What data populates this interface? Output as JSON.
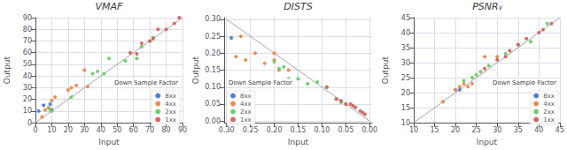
{
  "chart_data": [
    {
      "type": "scatter",
      "title": "VMAF",
      "x_label": "Input",
      "y_label": "Output",
      "xlim": [
        0,
        90
      ],
      "ylim": [
        0,
        90
      ],
      "xticks": [
        0,
        10,
        20,
        30,
        40,
        50,
        60,
        70,
        80,
        90
      ],
      "yticks": [
        0,
        10,
        20,
        30,
        40,
        50,
        60,
        70,
        80,
        90
      ],
      "grid": true,
      "legend": "lower right",
      "legend_title": "Down Sample Factor",
      "reference_line": {
        "x": [
          0,
          90
        ],
        "values": [
          0,
          90
        ],
        "color": "gray"
      },
      "series": [
        {
          "name": "8xx",
          "color": "#4878d0",
          "x": [
            2,
            5,
            9,
            10
          ],
          "values": [
            10,
            15,
            16,
            11
          ]
        },
        {
          "name": "4xx",
          "color": "#ee854a",
          "x": [
            4,
            6,
            8,
            10,
            12,
            20,
            22,
            25,
            30,
            32
          ],
          "values": [
            5,
            11,
            13,
            19,
            22,
            28,
            30,
            32,
            45,
            31
          ]
        },
        {
          "name": "2xx",
          "color": "#6acc65",
          "x": [
            9,
            10,
            22,
            35,
            38,
            42,
            45,
            55,
            62,
            65,
            70,
            72
          ],
          "values": [
            11,
            10,
            22,
            42,
            44,
            42,
            55,
            53,
            55,
            65,
            70,
            73
          ]
        },
        {
          "name": "1xx",
          "color": "#d65f5f",
          "x": [
            58,
            62,
            65,
            70,
            72,
            75,
            80,
            85,
            88
          ],
          "values": [
            60,
            59,
            68,
            70,
            72,
            80,
            80,
            85,
            90
          ]
        }
      ]
    },
    {
      "type": "scatter",
      "title": "DISTS",
      "x_label": "Input",
      "y_label": "Output",
      "xlim": [
        0.305,
        -0.005
      ],
      "ylim": [
        -0.005,
        0.305
      ],
      "xticks": [
        {
          "value": 0.3,
          "label": "0.30"
        },
        0.25,
        {
          "value": 0.2,
          "label": "0.20"
        },
        0.15,
        {
          "value": 0.1,
          "label": "0.10"
        },
        0.05,
        {
          "value": 0,
          "label": "0.00"
        }
      ],
      "yticks": [
        {
          "value": 0,
          "label": "0.00"
        },
        0.05,
        {
          "value": 0.1,
          "label": "0.10"
        },
        0.15,
        {
          "value": 0.2,
          "label": "0.20"
        },
        0.25,
        {
          "value": 0.3,
          "label": "0.30"
        }
      ],
      "grid": true,
      "legend": "lower left",
      "legend_title": "Down Sample Factor",
      "reference_line": {
        "x": [
          0.3,
          0.0
        ],
        "values": [
          0.3,
          0.0
        ],
        "color": "gray"
      },
      "series": [
        {
          "name": "8xx",
          "color": "#4878d0",
          "x": [
            0.29
          ],
          "values": [
            0.245
          ]
        },
        {
          "name": "4xx",
          "color": "#ee854a",
          "x": [
            0.28,
            0.27,
            0.26,
            0.24,
            0.22,
            0.2,
            0.2,
            0.19,
            0.17
          ],
          "values": [
            0.19,
            0.25,
            0.18,
            0.2,
            0.17,
            0.18,
            0.2,
            0.15,
            0.15
          ]
        },
        {
          "name": "2xx",
          "color": "#6acc65",
          "x": [
            0.2,
            0.19,
            0.18,
            0.17,
            0.15,
            0.13,
            0.11,
            0.09,
            0.07,
            0.06,
            0.05
          ],
          "values": [
            0.175,
            0.155,
            0.16,
            0.125,
            0.125,
            0.11,
            0.115,
            0.1,
            0.065,
            0.055,
            0.05
          ]
        },
        {
          "name": "1xx",
          "color": "#d65f5f",
          "x": [
            0.09,
            0.07,
            0.06,
            0.05,
            0.04,
            0.035,
            0.03,
            0.02,
            0.015,
            0.01
          ],
          "values": [
            0.1,
            0.065,
            0.06,
            0.05,
            0.05,
            0.045,
            0.04,
            0.03,
            0.025,
            0.02
          ]
        }
      ]
    },
    {
      "type": "scatter",
      "title": "PSNRᵧ",
      "x_label": "Input",
      "y_label": "Output",
      "xlim": [
        10,
        45
      ],
      "ylim": [
        10,
        45
      ],
      "xticks": [
        10,
        15,
        20,
        25,
        30,
        35,
        40,
        45
      ],
      "yticks": [
        10,
        15,
        20,
        25,
        30,
        35,
        40,
        45
      ],
      "grid": true,
      "legend": "lower right",
      "legend_title": "Down Sample Factor",
      "reference_line": {
        "x": [
          10,
          45
        ],
        "values": [
          10,
          45
        ],
        "color": "gray"
      },
      "series": [
        {
          "name": "8xx",
          "color": "#4878d0",
          "x": [
            20,
            21
          ],
          "values": [
            21,
            21
          ]
        },
        {
          "name": "4xx",
          "color": "#ee854a",
          "x": [
            17,
            20,
            21,
            22,
            23,
            24,
            27,
            30
          ],
          "values": [
            17,
            21,
            22,
            23,
            22,
            23,
            32,
            32
          ]
        },
        {
          "name": "2xx",
          "color": "#6acc65",
          "x": [
            22,
            24,
            25,
            26,
            28,
            30,
            32,
            35,
            38,
            42
          ],
          "values": [
            24,
            25,
            26,
            27,
            29,
            31,
            33,
            36,
            37,
            43
          ]
        },
        {
          "name": "1xx",
          "color": "#d65f5f",
          "x": [
            27,
            30,
            32,
            33,
            35,
            37,
            40,
            41,
            43
          ],
          "values": [
            28,
            31,
            32,
            34,
            36,
            38,
            40,
            41,
            43
          ]
        }
      ]
    }
  ]
}
